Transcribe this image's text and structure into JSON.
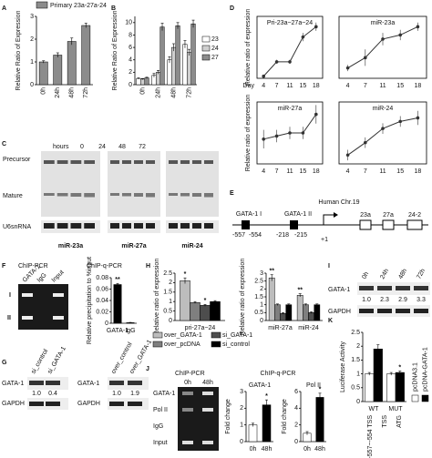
{
  "panel_labels": [
    "A",
    "B",
    "C",
    "D",
    "E",
    "F",
    "G",
    "H",
    "I",
    "J",
    "K"
  ],
  "panel_C": {
    "hours": "hours",
    "times": [
      "0",
      "24",
      "48",
      "72"
    ],
    "rows": [
      "Precursor",
      "Mature",
      "U6snRNA"
    ],
    "gels": [
      "miR-23a",
      "miR-27a",
      "miR-24"
    ]
  },
  "panel_E": {
    "chromosome": "Human Chr.19",
    "sites": [
      "GATA-1 I",
      "GATA-1 II"
    ],
    "positions": [
      "-557",
      "-554",
      "-218",
      "-215",
      "+1"
    ],
    "genes": [
      "23a",
      "27a",
      "24-2"
    ]
  },
  "panel_F": {
    "title": "ChIP-PCR",
    "lanes": [
      "GATA-1",
      "IgG",
      "Input"
    ],
    "rows": [
      "I",
      "II"
    ]
  },
  "panel_G": {
    "left": {
      "lanes": [
        "si_control",
        "si_GATA-1"
      ],
      "rows": [
        "GATA-1",
        "GAPDH"
      ],
      "ratios": [
        "1.0",
        "0.4"
      ]
    },
    "right": {
      "lanes": [
        "over_control",
        "over_GATA-1"
      ],
      "rows": [
        "GATA-1",
        "GAPDH"
      ],
      "ratios": [
        "1.0",
        "1.9"
      ]
    }
  },
  "panel_I": {
    "lanes": [
      "0h",
      "24h",
      "48h",
      "72h"
    ],
    "rows": [
      "GATA-1",
      "GAPDH"
    ],
    "ratios": [
      "1.0",
      "2.3",
      "2.9",
      "3.3"
    ]
  },
  "panel_J": {
    "title": "ChIP-PCR",
    "qpcr_title": "ChIP-q-PCR",
    "lanes": [
      "0h",
      "48h"
    ],
    "rows": [
      "GATA-1",
      "Pol II",
      "IgG",
      "Input"
    ]
  },
  "chart_data": [
    {
      "type": "bar",
      "ylabel": "Relative Ratio of Expression",
      "categories": [
        "0h",
        "24h",
        "48h",
        "72h"
      ],
      "series": [
        {
          "name": "Primary 23a-27a-24",
          "color": "#8c8c8c",
          "values": [
            1.0,
            1.3,
            1.9,
            2.6
          ],
          "errors": [
            0.05,
            0.1,
            0.15,
            0.1
          ]
        }
      ],
      "ylim": [
        0,
        3
      ],
      "yticks": [
        0,
        1,
        2,
        3
      ]
    },
    {
      "type": "bar",
      "ylabel": "Relative Ratio of Expression",
      "categories": [
        "0h",
        "24h",
        "48h",
        "72h"
      ],
      "series": [
        {
          "name": "23",
          "color": "#ffffff",
          "values": [
            1.0,
            1.5,
            4.0,
            6.5
          ],
          "errors": [
            0.1,
            0.3,
            0.5,
            0.6
          ]
        },
        {
          "name": "24",
          "color": "#cfcfcf",
          "values": [
            0.9,
            2.0,
            6.0,
            5.2
          ],
          "errors": [
            0.1,
            0.3,
            0.6,
            0.5
          ]
        },
        {
          "name": "27",
          "color": "#8c8c8c",
          "values": [
            1.1,
            9.3,
            9.5,
            9.8
          ],
          "errors": [
            0.1,
            0.6,
            0.5,
            0.6
          ]
        }
      ],
      "ylim": [
        0,
        11
      ],
      "yticks": [
        0,
        2,
        4,
        6,
        8,
        10
      ]
    },
    {
      "type": "line",
      "title": "Pri-23a~27a~24",
      "ylabel": "Relative ratio of expression",
      "xlabel": "Day",
      "categories": [
        "4",
        "7",
        "11",
        "15",
        "18"
      ],
      "series": [
        {
          "color": "#333333",
          "values": [
            1,
            8,
            8,
            20,
            25
          ],
          "errors": [
            0.5,
            1,
            1,
            2,
            2
          ]
        }
      ],
      "ylim": [
        0,
        30
      ]
    },
    {
      "type": "line",
      "title": "miR-23a",
      "categories": [
        "4",
        "7",
        "11",
        "15",
        "18"
      ],
      "series": [
        {
          "color": "#333333",
          "values": [
            1,
            2,
            3.8,
            4.2,
            5
          ],
          "errors": [
            0.3,
            0.8,
            0.6,
            0.5,
            0.4
          ]
        }
      ],
      "ylim": [
        0,
        6
      ]
    },
    {
      "type": "line",
      "title": "miR-27a",
      "ylabel": "Relative ratio of expression",
      "categories": [
        "4",
        "7",
        "11",
        "15",
        "18"
      ],
      "series": [
        {
          "color": "#333333",
          "values": [
            0.8,
            0.9,
            1.0,
            1.0,
            1.6
          ],
          "errors": [
            0.3,
            0.2,
            0.2,
            0.2,
            0.3
          ]
        }
      ],
      "ylim": [
        0,
        2
      ]
    },
    {
      "type": "line",
      "title": "miR-24",
      "categories": [
        "4",
        "7",
        "11",
        "15",
        "18"
      ],
      "series": [
        {
          "color": "#333333",
          "values": [
            0.5,
            1.2,
            2.0,
            2.4,
            2.6
          ],
          "errors": [
            0.3,
            0.3,
            0.3,
            0.3,
            0.4
          ]
        }
      ],
      "ylim": [
        0,
        3.5
      ]
    },
    {
      "type": "bar",
      "title": "ChIP-q-PCR",
      "ylabel": "Relative precipitation to %input",
      "categories": [
        "GATA-1",
        "IgG"
      ],
      "series": [
        {
          "color": "#000000",
          "values": [
            0.068,
            0.001
          ],
          "errors": [
            0.002,
            0.0005
          ]
        }
      ],
      "ylim": [
        0,
        0.08
      ],
      "yticks": [
        0,
        0.02,
        0.04,
        0.06,
        0.08
      ],
      "annotations": [
        "**"
      ]
    },
    {
      "type": "bar",
      "ylabel": "Relative ratio of expression",
      "categories": [
        "pri-27a~24"
      ],
      "series": [
        {
          "name": "over_GATA-1",
          "color": "#bdbdbd",
          "values": [
            2.1
          ],
          "errors": [
            0.15
          ]
        },
        {
          "name": "over_pcDNA",
          "color": "#7f7f7f",
          "values": [
            0.95
          ],
          "errors": [
            0.05
          ]
        },
        {
          "name": "si_GATA-1",
          "color": "#4d4d4d",
          "values": [
            0.8
          ],
          "errors": [
            0.05
          ]
        },
        {
          "name": "si_control",
          "color": "#000000",
          "values": [
            1.0
          ],
          "errors": [
            0.05
          ]
        }
      ],
      "ylim": [
        0,
        2.5
      ],
      "yticks": [
        0,
        0.5,
        1,
        1.5,
        2,
        2.5
      ],
      "annotations": [
        "*",
        "*"
      ]
    },
    {
      "type": "bar",
      "ylabel": "Relative ratio of expression",
      "categories": [
        "miR-27a",
        "miR-24"
      ],
      "series": [
        {
          "name": "over_GATA-1",
          "color": "#bdbdbd",
          "values": [
            2.7,
            1.6
          ],
          "errors": [
            0.2,
            0.1
          ]
        },
        {
          "name": "over_pcDNA",
          "color": "#7f7f7f",
          "values": [
            1.0,
            1.0
          ],
          "errors": [
            0.05,
            0.05
          ]
        },
        {
          "name": "si_GATA-1",
          "color": "#4d4d4d",
          "values": [
            0.45,
            0.5
          ],
          "errors": [
            0.05,
            0.05
          ]
        },
        {
          "name": "si_control",
          "color": "#000000",
          "values": [
            1.0,
            1.0
          ],
          "errors": [
            0.05,
            0.05
          ]
        }
      ],
      "ylim": [
        0,
        3
      ],
      "yticks": [
        0,
        0.5,
        1,
        1.5,
        2,
        2.5,
        3
      ],
      "annotations": [
        "**",
        "**"
      ]
    },
    {
      "type": "bar",
      "title": "GATA-1",
      "ylabel": "Fold change",
      "categories": [
        "0h",
        "48h"
      ],
      "colors": [
        "#ffffff",
        "#000000"
      ],
      "series": [
        {
          "values": [
            1.0,
            2.2
          ],
          "errors": [
            0.1,
            0.3
          ]
        }
      ],
      "ylim": [
        0,
        3
      ],
      "yticks": [
        0,
        1,
        2,
        3
      ],
      "annotations": [
        "*"
      ]
    },
    {
      "type": "bar",
      "title": "Pol II",
      "ylabel": "Fold change",
      "categories": [
        "0h",
        "48h"
      ],
      "colors": [
        "#ffffff",
        "#000000"
      ],
      "series": [
        {
          "values": [
            1.0,
            5.3
          ],
          "errors": [
            0.2,
            0.5
          ]
        }
      ],
      "ylim": [
        0,
        6
      ],
      "yticks": [
        0,
        2,
        4,
        6
      ],
      "annotations": [
        "*"
      ]
    },
    {
      "type": "bar",
      "ylabel": "Luciferase Activity",
      "categories": [
        "WT",
        "MUT"
      ],
      "region_labels": [
        "-557~-554 TSS",
        "TSS",
        "ATG"
      ],
      "series": [
        {
          "name": "pcDNA3.1",
          "color": "#ffffff",
          "values": [
            1.0,
            1.0
          ],
          "errors": [
            0.05,
            0.05
          ]
        },
        {
          "name": "pcDNA-GATA-1",
          "color": "#000000",
          "values": [
            1.9,
            1.05
          ],
          "errors": [
            0.15,
            0.05
          ]
        }
      ],
      "ylim": [
        0,
        2.5
      ],
      "yticks": [
        0,
        0.5,
        1,
        1.5,
        2,
        2.5
      ],
      "annotations": [
        "*"
      ]
    }
  ]
}
